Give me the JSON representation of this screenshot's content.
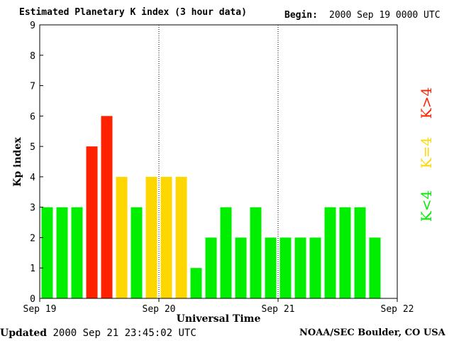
{
  "header": {
    "title": "Estimated Planetary K index (3 hour data)",
    "begin_label": "Begin:",
    "begin_value": "2000 Sep 19 0000 UTC"
  },
  "footer": {
    "updated_label": "Updated",
    "updated_value": "2000 Sep 21 23:45:02 UTC",
    "credit": "NOAA/SEC Boulder, CO USA"
  },
  "colors": {
    "below_storm": "#00ee00",
    "storm_threshold": "#ffd700",
    "storm": "#ff2200"
  },
  "chart_data": {
    "type": "bar",
    "title": "Estimated Planetary K index (3 hour data)",
    "xlabel": "Universal Time",
    "ylabel": "Kp index",
    "ylim": [
      0,
      9
    ],
    "yticks": [
      0,
      1,
      2,
      3,
      4,
      5,
      6,
      7,
      8,
      9
    ],
    "x_tick_labels": [
      "Sep 19",
      "Sep 20",
      "Sep 21",
      "Sep 22"
    ],
    "interval_hours": 3,
    "values": [
      3,
      3,
      3,
      5,
      6,
      4,
      3,
      4,
      4,
      4,
      1,
      2,
      3,
      2,
      3,
      2,
      2,
      2,
      2,
      3,
      3,
      3,
      2
    ],
    "legend": [
      {
        "label": "K<4",
        "color": "#00ee00"
      },
      {
        "label": "K=4",
        "color": "#ffd700"
      },
      {
        "label": "K>4",
        "color": "#ff2200"
      }
    ],
    "legend_placement": "right",
    "day_separators": true
  }
}
